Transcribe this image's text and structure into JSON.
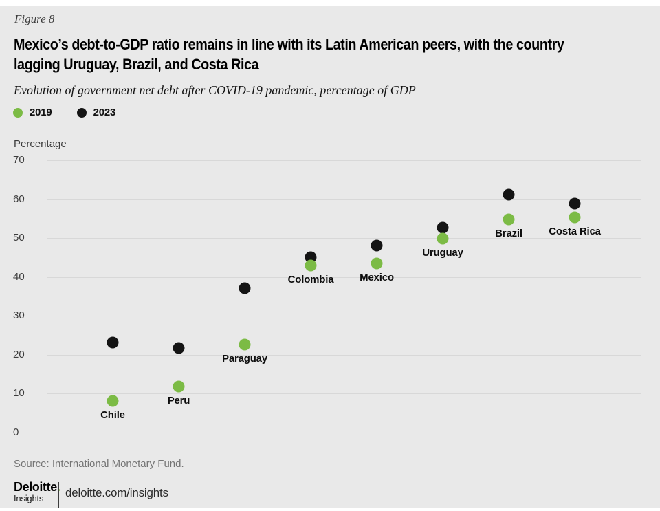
{
  "figure_label": "Figure 8",
  "title": "Mexico’s debt-to-GDP ratio remains in line with its Latin American peers, with the country lagging Uruguay, Brazil, and Costa Rica",
  "title_lines": [
    "Mexico’s debt-to-GDP ratio remains in line with its Latin American peers, with the country",
    "lagging Uruguay, Brazil, and Costa Rica"
  ],
  "subtitle": "Evolution of government net debt after COVID-19 pandemic, percentage of GDP",
  "legend": [
    {
      "label": "2019",
      "color": "#7CBB45"
    },
    {
      "label": "2023",
      "color": "#141414"
    }
  ],
  "colors": {
    "accent_green": "#7CBB45",
    "dot_black": "#141414",
    "background": "#e9e9e9",
    "gridline": "#d8d8d8"
  },
  "chart_data": {
    "type": "scatter",
    "title": "Mexico’s debt-to-GDP ratio remains in line with its Latin American peers, with the country lagging Uruguay, Brazil, and Costa Rica",
    "subtitle": "Evolution of government net debt after COVID-19 pandemic, percentage of GDP",
    "categories": [
      "Chile",
      "Peru",
      "Paraguay",
      "Colombia",
      "Mexico",
      "Uruguay",
      "Brazil",
      "Costa Rica"
    ],
    "series": [
      {
        "name": "2019",
        "color": "#7CBB45",
        "values": [
          8.2,
          11.8,
          22.7,
          42.9,
          43.5,
          49.8,
          54.8,
          55.3
        ]
      },
      {
        "name": "2023",
        "color": "#141414",
        "values": [
          23.1,
          21.8,
          37.1,
          45.0,
          48.0,
          52.7,
          61.2,
          58.8
        ]
      }
    ],
    "xlabel": "",
    "ylabel": "Percentage",
    "ylim": [
      0,
      70
    ],
    "yticks": [
      0,
      10,
      20,
      30,
      40,
      50,
      60,
      70
    ],
    "grid": true,
    "legend_position": "top-left"
  },
  "source": "Source: International Monetary Fund.",
  "footer": {
    "logo_primary": "Deloitte",
    "logo_dot": ".",
    "logo_secondary": "Insights",
    "link": "deloitte.com/insights"
  }
}
